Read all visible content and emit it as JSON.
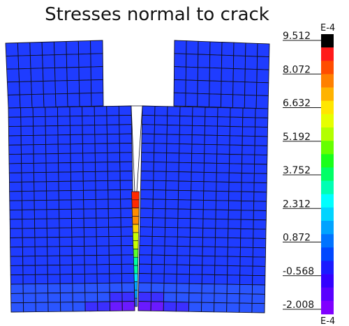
{
  "title": "Stresses normal to crack",
  "legend": {
    "exponent_top": "E-4",
    "exponent_bottom": "E-4",
    "tick_labels": [
      "9.512",
      "8.072",
      "6.632",
      "5.192",
      "3.752",
      "2.312",
      "0.872",
      "-0.568",
      "-2.008"
    ],
    "band_colors": [
      "#000000",
      "#ff1a1a",
      "#ff4d00",
      "#ff8000",
      "#ffb300",
      "#ffe600",
      "#e6ff00",
      "#b3ff00",
      "#66ff00",
      "#1aff1a",
      "#00ff66",
      "#00ffb3",
      "#00ffff",
      "#00d4ff",
      "#00a3ff",
      "#0073ff",
      "#0047ff",
      "#1a1aff",
      "#3300ff",
      "#5900ff",
      "#7f00ff"
    ]
  },
  "mesh": {
    "element_color": "#1f3cff",
    "line_color": "#101020",
    "crack_gradient": [
      "#ff2a00",
      "#ff8c00",
      "#ffd200",
      "#c8ff00",
      "#5cff2a",
      "#00ffa0",
      "#00e6ff",
      "#00a8ff",
      "#3a6bff"
    ],
    "bottom_gradient": [
      "#2a55ff",
      "#3b2fff",
      "#6a1aff",
      "#9a00ff"
    ]
  }
}
